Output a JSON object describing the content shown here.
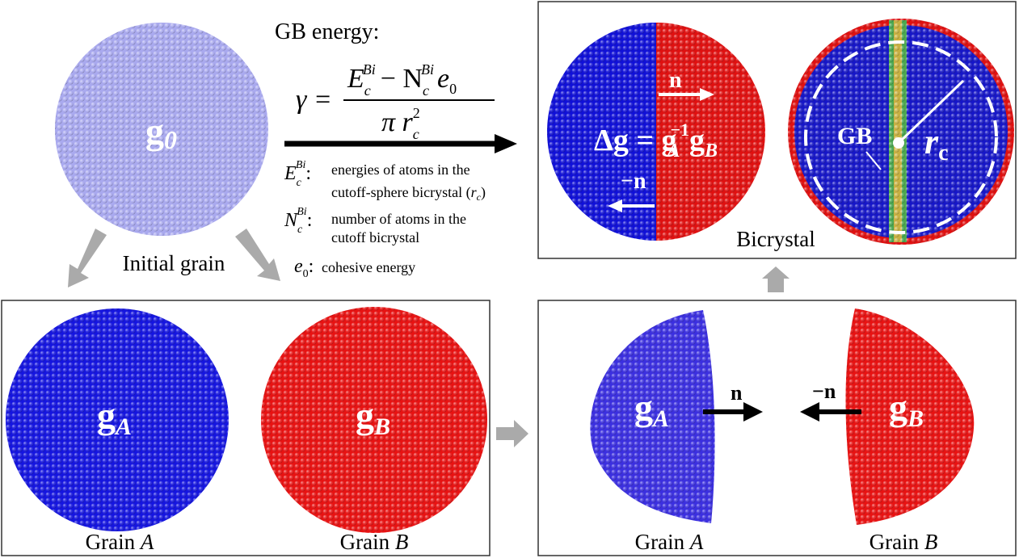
{
  "initial": {
    "g": "g",
    "g_sub": "0",
    "label": "Initial grain"
  },
  "formula": {
    "title": "GB energy:",
    "gamma": "γ =",
    "E": "E",
    "E_sub": "c",
    "E_sup": "Bi",
    "minus_N": "− N",
    "N_sub": "c",
    "N_sup": "Bi",
    "e": "e",
    "e_sub": "0",
    "pi_r": "π r",
    "r_sub": "c",
    "r_sup": "2"
  },
  "definitions": [
    {
      "symbol": "E",
      "sub": "c",
      "sup": "Bi",
      "colon": ":",
      "lines": [
        "energies of atoms in the",
        "cutoff-sphere bicrystal ("
      ],
      "r": "r",
      "r_sub": "c",
      "close": ")"
    },
    {
      "symbol": "N",
      "sub": "c",
      "sup": "Bi",
      "colon": ":",
      "lines": [
        "number  of atoms in the",
        "cutoff bicrystal"
      ]
    },
    {
      "symbol": "e",
      "sub": "0",
      "colon": ":",
      "lines": [
        "cohesive energy"
      ]
    }
  ],
  "bicrystal": {
    "delta": "Δg = g",
    "A": "A",
    "inv": "−1",
    "g": "g",
    "B": "B",
    "n": "n",
    "neg_n": "−n",
    "gb": "GB",
    "r": "r",
    "r_sub": "c",
    "label": "Bicrystal"
  },
  "grains": {
    "g": "g",
    "A": "A",
    "B": "B",
    "label_prefix": "Grain "
  },
  "halves": {
    "g": "g",
    "A": "A",
    "B": "B",
    "n": "n",
    "neg_n": "−n",
    "label_prefix": "Grain "
  }
}
